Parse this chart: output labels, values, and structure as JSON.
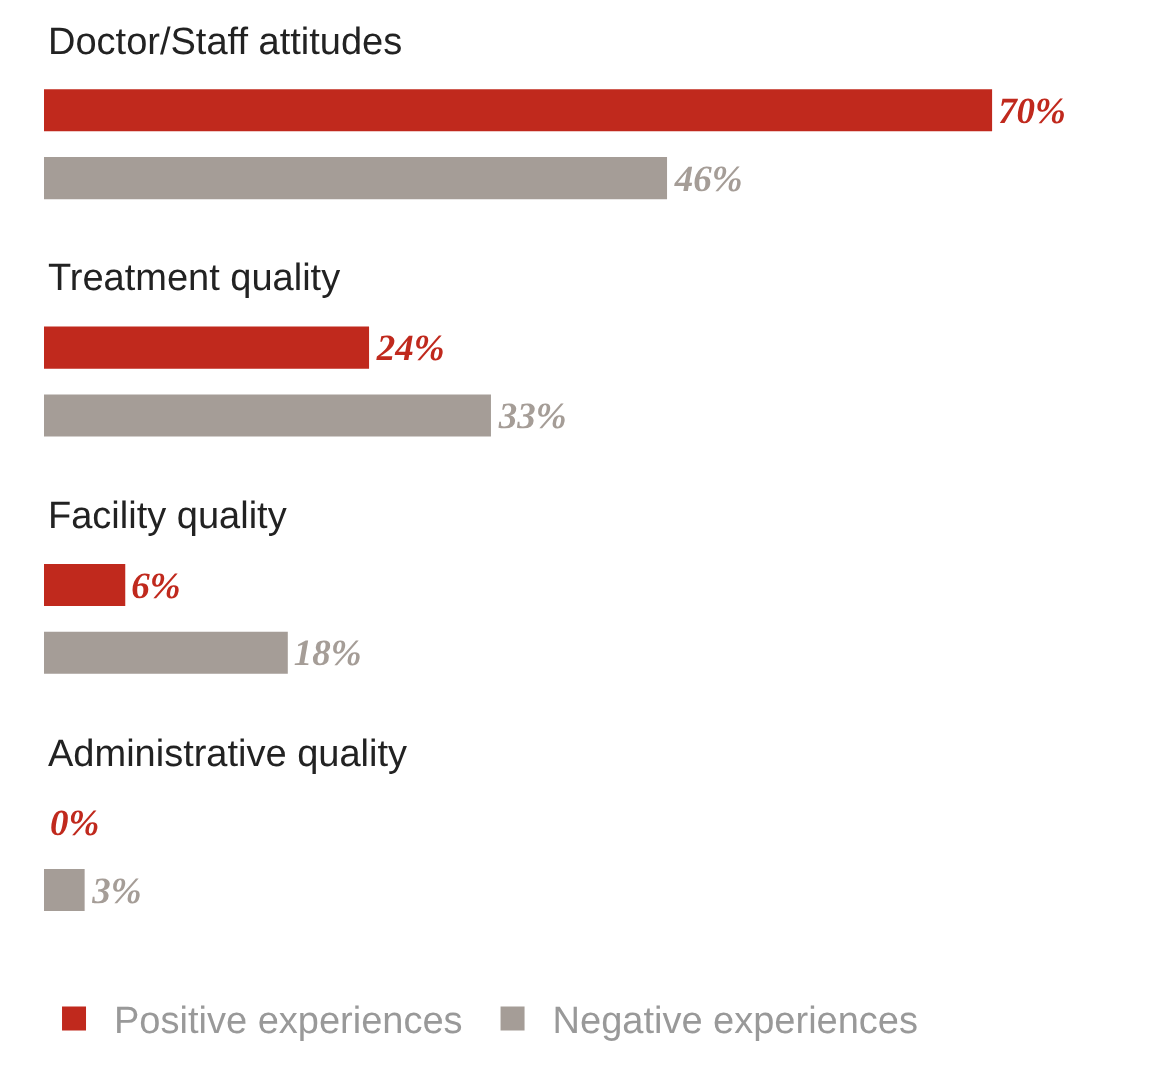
{
  "chart_data": {
    "type": "bar",
    "orientation": "horizontal",
    "categories": [
      "Doctor/Staff attitudes",
      "Treatment quality",
      "Facility quality",
      "Administrative quality"
    ],
    "series": [
      {
        "name": "Positive experiences",
        "color": "#c0291d",
        "values": [
          70,
          24,
          6,
          0
        ],
        "value_labels": [
          "70%",
          "24%",
          "6%",
          "0%"
        ]
      },
      {
        "name": "Negative experiences",
        "color": "#a59d97",
        "values": [
          46,
          33,
          18,
          3
        ],
        "value_labels": [
          "46%",
          "33%",
          "18%",
          "3%"
        ]
      }
    ],
    "tick_labels": false,
    "legend": "bottom left"
  }
}
